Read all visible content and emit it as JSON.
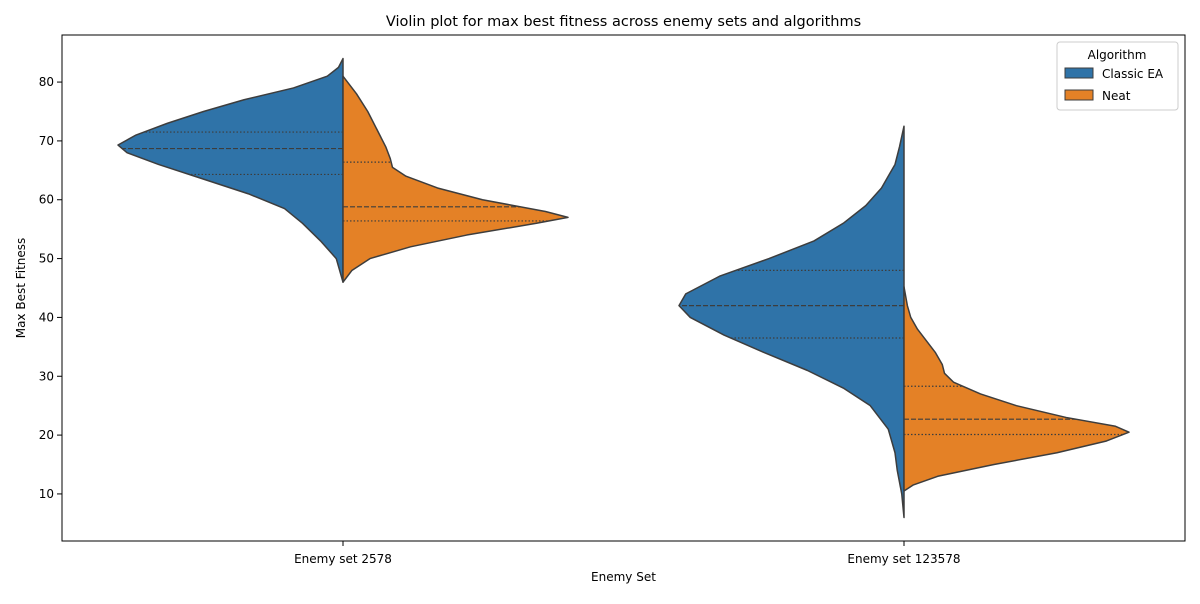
{
  "chart_data": {
    "type": "violin",
    "title": "Violin plot for max best fitness across enemy sets and algorithms",
    "xlabel": "Enemy Set",
    "ylabel": "Max Best Fitness",
    "categories": [
      "Enemy set 2578",
      "Enemy set 123578"
    ],
    "ylim": [
      2,
      88
    ],
    "yticks": [
      10,
      20,
      30,
      40,
      50,
      60,
      70,
      80
    ],
    "grid": false,
    "legend": {
      "title": "Algorithm",
      "placement": "top-right",
      "entries": [
        "Classic EA",
        "Neat"
      ]
    },
    "colors": {
      "Classic EA": "#2f73a8",
      "Neat": "#e48126",
      "outline": "#3d3d3d"
    },
    "series": [
      {
        "name": "Classic EA",
        "side": "left",
        "violins": [
          {
            "category": "Enemy set 2578",
            "min": 46.0,
            "max": 84.0,
            "q1": 64.3,
            "median": 68.7,
            "q3": 71.5,
            "density": [
              [
                46.0,
                0.0
              ],
              [
                50.0,
                0.03
              ],
              [
                53.0,
                0.1
              ],
              [
                56.0,
                0.18
              ],
              [
                58.5,
                0.26
              ],
              [
                61.0,
                0.42
              ],
              [
                63.5,
                0.62
              ],
              [
                66.0,
                0.82
              ],
              [
                68.0,
                0.96
              ],
              [
                69.3,
                1.0
              ],
              [
                71.0,
                0.92
              ],
              [
                73.0,
                0.78
              ],
              [
                75.0,
                0.62
              ],
              [
                77.0,
                0.44
              ],
              [
                79.0,
                0.22
              ],
              [
                81.0,
                0.07
              ],
              [
                82.5,
                0.02
              ],
              [
                84.0,
                0.0
              ]
            ]
          },
          {
            "category": "Enemy set 123578",
            "min": 6.0,
            "max": 72.5,
            "q1": 36.5,
            "median": 42.0,
            "q3": 48.0,
            "density": [
              [
                6.0,
                0.0
              ],
              [
                10.0,
                0.01
              ],
              [
                14.0,
                0.03
              ],
              [
                17.0,
                0.04
              ],
              [
                21.0,
                0.07
              ],
              [
                25.0,
                0.15
              ],
              [
                28.0,
                0.27
              ],
              [
                31.0,
                0.43
              ],
              [
                34.0,
                0.62
              ],
              [
                37.0,
                0.8
              ],
              [
                40.0,
                0.95
              ],
              [
                42.0,
                1.0
              ],
              [
                44.0,
                0.97
              ],
              [
                47.0,
                0.82
              ],
              [
                50.0,
                0.6
              ],
              [
                53.0,
                0.4
              ],
              [
                56.0,
                0.27
              ],
              [
                59.0,
                0.17
              ],
              [
                62.0,
                0.1
              ],
              [
                66.0,
                0.04
              ],
              [
                69.0,
                0.02
              ],
              [
                72.5,
                0.0
              ]
            ]
          }
        ]
      },
      {
        "name": "Neat",
        "side": "right",
        "violins": [
          {
            "category": "Enemy set 2578",
            "min": 46.0,
            "max": 81.0,
            "q1": 56.4,
            "median": 58.8,
            "q3": 66.4,
            "density": [
              [
                46.0,
                0.0
              ],
              [
                48.0,
                0.04
              ],
              [
                50.0,
                0.12
              ],
              [
                52.0,
                0.3
              ],
              [
                54.0,
                0.55
              ],
              [
                56.0,
                0.86
              ],
              [
                57.0,
                1.0
              ],
              [
                58.0,
                0.9
              ],
              [
                60.0,
                0.62
              ],
              [
                62.0,
                0.42
              ],
              [
                64.0,
                0.28
              ],
              [
                65.5,
                0.22
              ],
              [
                67.0,
                0.21
              ],
              [
                69.0,
                0.19
              ],
              [
                72.0,
                0.15
              ],
              [
                75.0,
                0.11
              ],
              [
                78.0,
                0.06
              ],
              [
                80.0,
                0.02
              ],
              [
                81.0,
                0.0
              ]
            ]
          },
          {
            "category": "Enemy set 123578",
            "min": 10.5,
            "max": 45.2,
            "q1": 20.1,
            "median": 22.7,
            "q3": 28.3,
            "density": [
              [
                10.5,
                0.0
              ],
              [
                11.5,
                0.04
              ],
              [
                13.0,
                0.15
              ],
              [
                15.0,
                0.4
              ],
              [
                17.0,
                0.68
              ],
              [
                19.0,
                0.9
              ],
              [
                20.5,
                1.0
              ],
              [
                21.5,
                0.94
              ],
              [
                23.0,
                0.72
              ],
              [
                25.0,
                0.5
              ],
              [
                27.0,
                0.34
              ],
              [
                29.0,
                0.22
              ],
              [
                30.5,
                0.18
              ],
              [
                32.0,
                0.17
              ],
              [
                34.0,
                0.14
              ],
              [
                36.0,
                0.1
              ],
              [
                38.0,
                0.06
              ],
              [
                40.0,
                0.03
              ],
              [
                42.0,
                0.015
              ],
              [
                45.2,
                0.0
              ]
            ]
          }
        ]
      }
    ]
  }
}
